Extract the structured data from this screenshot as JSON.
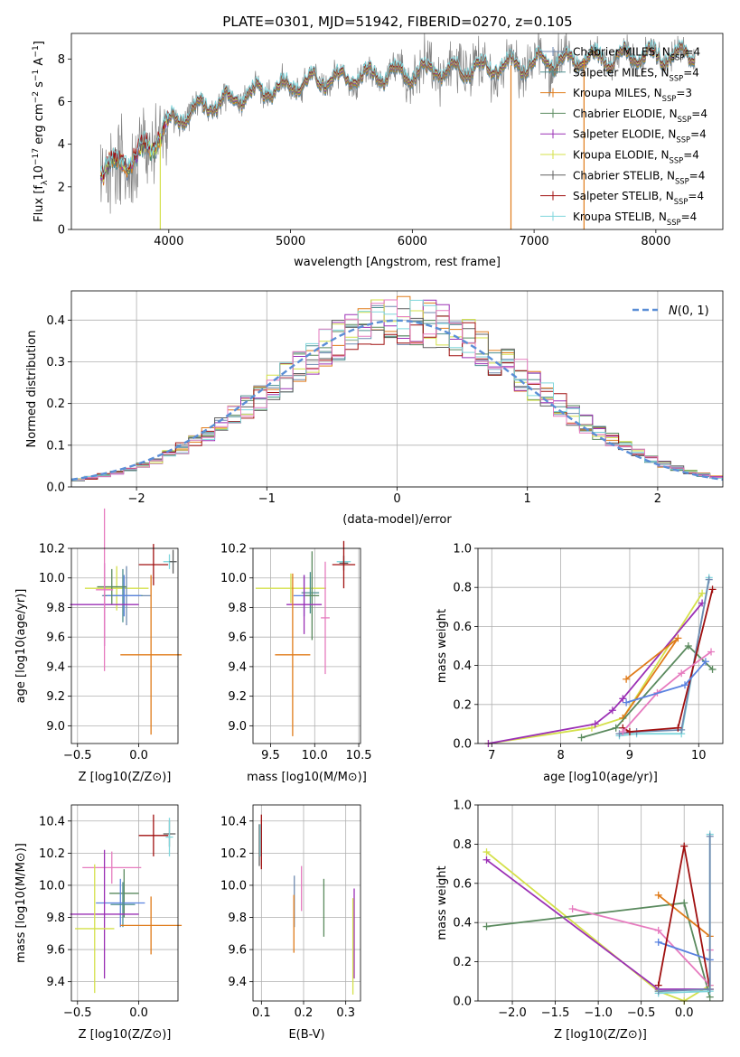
{
  "page": {
    "title": "PLATE=0301, MJD=51942, FIBERID=0270, z=0.105"
  },
  "colors": {
    "chabrier_miles": "#6f8ab0",
    "salpeter_miles": "#4d8f8f",
    "kroupa_miles": "#e07b1a",
    "chabrier_elodie": "#5a8a5e",
    "salpeter_elodie": "#9b30b5",
    "kroupa_elodie": "#d4e04a",
    "chabrier_stelib": "#606060",
    "salpeter_stelib": "#a01010",
    "kroupa_stelib": "#7fd6dc",
    "normal": "#5a8ed6",
    "pink": "#e67bbf",
    "blue": "#5a82e0"
  },
  "chart_data": [
    {
      "id": "spectrum",
      "type": "line",
      "xlabel": "wavelength [Angstrom, rest frame]",
      "ylabel": "Flux [f_λ10^-17 erg cm^-2 s^-1 A^-1]",
      "xlim": [
        3200,
        8550
      ],
      "ylim": [
        0,
        9.2
      ],
      "xticks": [
        4000,
        5000,
        6000,
        7000,
        8000
      ],
      "yticks": [
        0,
        2,
        4,
        6,
        8
      ],
      "legend_position": "top-right",
      "legend": [
        {
          "label": "Chabrier MILES, N_SSP=4",
          "color": "#6f8ab0"
        },
        {
          "label": "Salpeter MILES, N_SSP=4",
          "color": "#4d8f8f"
        },
        {
          "label": "Kroupa MILES, N_SSP=3",
          "color": "#e07b1a"
        },
        {
          "label": "Chabrier ELODIE, N_SSP=4",
          "color": "#5a8a5e"
        },
        {
          "label": "Salpeter ELODIE, N_SSP=4",
          "color": "#9b30b5"
        },
        {
          "label": "Kroupa ELODIE, N_SSP=4",
          "color": "#d4e04a"
        },
        {
          "label": "Chabrier STELIB, N_SSP=4",
          "color": "#606060"
        },
        {
          "label": "Salpeter STELIB, N_SSP=4",
          "color": "#a01010"
        },
        {
          "label": "Kroupa STELIB, N_SSP=4",
          "color": "#7fd6dc"
        }
      ],
      "continuum": {
        "x": [
          3450,
          3700,
          3850,
          4000,
          4200,
          4500,
          4800,
          5000,
          5300,
          5600,
          6000,
          6300,
          6600,
          7000,
          7400,
          7800,
          8300
        ],
        "y": [
          2.8,
          3.3,
          3.9,
          5.0,
          5.6,
          6.1,
          6.5,
          6.8,
          7.0,
          7.2,
          7.3,
          7.5,
          7.6,
          7.8,
          8.0,
          8.1,
          8.2
        ]
      }
    },
    {
      "id": "residuals",
      "type": "step",
      "xlabel": "(data-model)/error",
      "ylabel": "Normed distribution",
      "xlim": [
        -2.5,
        2.5
      ],
      "ylim": [
        0,
        0.47
      ],
      "xticks": [
        -2,
        -1,
        0,
        1,
        2
      ],
      "yticks": [
        0.0,
        0.1,
        0.2,
        0.3,
        0.4
      ],
      "legend_position": "top-right",
      "legend": [
        {
          "label": "N(0,1)",
          "color": "#5a8ed6",
          "style": "dashed"
        }
      ],
      "bin_width": 0.1
    },
    {
      "id": "age_vs_Z",
      "type": "errorbar",
      "xlabel": "Z [log10(Z/Z⊙)]",
      "ylabel": "age [log10(age/yr)]",
      "xlim": [
        -0.55,
        0.32
      ],
      "ylim": [
        8.88,
        10.2
      ],
      "xticks": [
        -0.5,
        0.0
      ],
      "xticklabels": [
        "−0.5",
        "0.0"
      ],
      "yticks": [
        9.0,
        9.2,
        9.4,
        9.6,
        9.8,
        10.0,
        10.2
      ],
      "points": [
        {
          "x": 0.25,
          "y": 10.11,
          "xerr": 0.05,
          "yerr": 0.05,
          "color": "#7fd6dc"
        },
        {
          "x": 0.28,
          "y": 10.11,
          "xerr": 0.03,
          "yerr": 0.08,
          "color": "#606060"
        },
        {
          "x": 0.12,
          "y": 10.09,
          "xerr": 0.12,
          "yerr": 0.14,
          "color": "#a01010"
        },
        {
          "x": -0.18,
          "y": 9.93,
          "xerr": 0.26,
          "yerr": 0.15,
          "color": "#d4e04a"
        },
        {
          "x": -0.1,
          "y": 9.88,
          "xerr": 0.2,
          "yerr": 0.2,
          "color": "#6f8ab0"
        },
        {
          "x": -0.13,
          "y": 9.88,
          "xerr": 0.16,
          "yerr": 0.18,
          "color": "#4d8f8f"
        },
        {
          "x": -0.12,
          "y": 9.88,
          "xerr": 0.14,
          "yerr": 0.14,
          "color": "#5a82e0"
        },
        {
          "x": -0.22,
          "y": 9.94,
          "xerr": 0.12,
          "yerr": 0.12,
          "color": "#5a8a5e"
        },
        {
          "x": -0.28,
          "y": 9.82,
          "xerr": 0.28,
          "yerr": 0.28,
          "color": "#9b30b5"
        },
        {
          "x": -0.28,
          "y": 9.92,
          "xerr": 0.07,
          "yerr": 0.55,
          "color": "#e67bbf"
        },
        {
          "x": 0.1,
          "y": 9.48,
          "xerr": 0.25,
          "yerr": 0.54,
          "color": "#e07b1a"
        }
      ]
    },
    {
      "id": "age_vs_mass",
      "type": "errorbar",
      "xlabel": "mass [log10(M/M⊙)]",
      "ylabel": "",
      "xlim": [
        9.3,
        10.52
      ],
      "ylim": [
        8.88,
        10.2
      ],
      "xticks": [
        9.5,
        10.0,
        10.5
      ],
      "yticks": [
        9.0,
        9.2,
        9.4,
        9.6,
        9.8,
        10.0,
        10.2
      ],
      "points": [
        {
          "x": 10.33,
          "y": 10.11,
          "xerr": 0.08,
          "yerr": 0.04,
          "color": "#7fd6dc"
        },
        {
          "x": 10.33,
          "y": 10.1,
          "xerr": 0.05,
          "yerr": 0.05,
          "color": "#606060"
        },
        {
          "x": 10.33,
          "y": 10.09,
          "xerr": 0.13,
          "yerr": 0.16,
          "color": "#a01010"
        },
        {
          "x": 9.73,
          "y": 9.93,
          "xerr": 0.4,
          "yerr": 0.1,
          "color": "#d4e04a"
        },
        {
          "x": 9.88,
          "y": 9.88,
          "xerr": 0.12,
          "yerr": 0.14,
          "color": "#5a82e0"
        },
        {
          "x": 9.95,
          "y": 9.9,
          "xerr": 0.1,
          "yerr": 0.14,
          "color": "#4d8f8f"
        },
        {
          "x": 9.97,
          "y": 9.88,
          "xerr": 0.08,
          "yerr": 0.3,
          "color": "#5a8a5e"
        },
        {
          "x": 9.88,
          "y": 9.82,
          "xerr": 0.2,
          "yerr": 0.2,
          "color": "#9b30b5"
        },
        {
          "x": 10.12,
          "y": 9.73,
          "xerr": 0.05,
          "yerr": 0.38,
          "color": "#e67bbf"
        },
        {
          "x": 9.75,
          "y": 9.48,
          "xerr": 0.2,
          "yerr": 0.55,
          "color": "#e07b1a"
        }
      ]
    },
    {
      "id": "weight_vs_age",
      "type": "line",
      "xlabel": "age [log10(age/yr)]",
      "ylabel": "mass weight",
      "xlim": [
        6.8,
        10.35
      ],
      "ylim": [
        0,
        1.0
      ],
      "xticks": [
        7,
        8,
        9,
        10
      ],
      "yticks": [
        0.0,
        0.2,
        0.4,
        0.6,
        0.8,
        1.0
      ],
      "series": [
        {
          "color": "#d4e04a",
          "x": [
            6.95,
            8.45,
            8.9,
            10.05
          ],
          "y": [
            0.0,
            0.08,
            0.13,
            0.77
          ]
        },
        {
          "color": "#9b30b5",
          "x": [
            6.95,
            8.5,
            8.75,
            8.9,
            10.05
          ],
          "y": [
            0.0,
            0.1,
            0.17,
            0.23,
            0.72
          ]
        },
        {
          "color": "#e07b1a",
          "x": [
            8.95,
            9.7,
            8.9
          ],
          "y": [
            0.33,
            0.54,
            0.13
          ]
        },
        {
          "color": "#5a8a5e",
          "x": [
            8.3,
            8.8,
            9.85,
            10.2
          ],
          "y": [
            0.03,
            0.08,
            0.5,
            0.38
          ]
        },
        {
          "color": "#7fd6dc",
          "x": [
            8.85,
            9.1,
            9.75,
            10.15
          ],
          "y": [
            0.04,
            0.05,
            0.05,
            0.85
          ]
        },
        {
          "color": "#6f8ab0",
          "x": [
            8.85,
            9.1,
            9.75,
            10.15
          ],
          "y": [
            0.05,
            0.06,
            0.07,
            0.84
          ]
        },
        {
          "color": "#a01010",
          "x": [
            8.9,
            9.0,
            9.7,
            10.2
          ],
          "y": [
            0.08,
            0.06,
            0.08,
            0.79
          ]
        },
        {
          "color": "#e67bbf",
          "x": [
            8.9,
            9.4,
            9.75,
            10.18
          ],
          "y": [
            0.06,
            0.26,
            0.36,
            0.47
          ]
        },
        {
          "color": "#5a82e0",
          "x": [
            8.95,
            9.8,
            10.1
          ],
          "y": [
            0.21,
            0.3,
            0.42
          ]
        }
      ]
    },
    {
      "id": "mass_vs_Z",
      "type": "errorbar",
      "xlabel": "Z [log10(Z/Z⊙)]",
      "ylabel": "mass [log10(M/M⊙)]",
      "xlim": [
        -0.55,
        0.32
      ],
      "ylim": [
        9.28,
        10.5
      ],
      "xticks": [
        -0.5,
        0.0
      ],
      "xticklabels": [
        "−0.5",
        "0.0"
      ],
      "yticks": [
        9.4,
        9.6,
        9.8,
        10.0,
        10.2,
        10.4
      ],
      "points": [
        {
          "x": 0.25,
          "y": 10.32,
          "xerr": 0.05,
          "yerr": 0.08,
          "color": "#606060"
        },
        {
          "x": 0.12,
          "y": 10.31,
          "xerr": 0.12,
          "yerr": 0.13,
          "color": "#a01010"
        },
        {
          "x": 0.25,
          "y": 10.3,
          "xerr": 0.03,
          "yerr": 0.12,
          "color": "#7fd6dc"
        },
        {
          "x": -0.22,
          "y": 10.11,
          "xerr": 0.24,
          "yerr": 0.1,
          "color": "#e67bbf"
        },
        {
          "x": -0.12,
          "y": 9.95,
          "xerr": 0.12,
          "yerr": 0.15,
          "color": "#5a8a5e"
        },
        {
          "x": -0.15,
          "y": 9.89,
          "xerr": 0.2,
          "yerr": 0.15,
          "color": "#5a82e0"
        },
        {
          "x": -0.13,
          "y": 9.88,
          "xerr": 0.1,
          "yerr": 0.14,
          "color": "#4d8f8f"
        },
        {
          "x": -0.28,
          "y": 9.82,
          "xerr": 0.28,
          "yerr": 0.4,
          "color": "#9b30b5"
        },
        {
          "x": -0.36,
          "y": 9.73,
          "xerr": 0.16,
          "yerr": 0.4,
          "color": "#d4e04a"
        },
        {
          "x": 0.1,
          "y": 9.75,
          "xerr": 0.25,
          "yerr": 0.18,
          "color": "#e07b1a"
        }
      ]
    },
    {
      "id": "mass_vs_ebv",
      "type": "errorbar",
      "xlabel": "E(B-V)",
      "ylabel": "",
      "xlim": [
        0.08,
        0.335
      ],
      "ylim": [
        9.28,
        10.5
      ],
      "xticks": [
        0.1,
        0.2,
        0.3
      ],
      "yticks": [
        9.4,
        9.6,
        9.8,
        10.0,
        10.2,
        10.4
      ],
      "points": [
        {
          "x": 0.1,
          "y": 10.27,
          "yerr": 0.17,
          "color": "#a01010"
        },
        {
          "x": 0.095,
          "y": 10.25,
          "yerr": 0.13,
          "color": "#606060"
        },
        {
          "x": 0.097,
          "y": 10.28,
          "yerr": 0.1,
          "color": "#7fd6dc"
        },
        {
          "x": 0.178,
          "y": 9.9,
          "yerr": 0.16,
          "color": "#6f8ab0"
        },
        {
          "x": 0.177,
          "y": 9.76,
          "yerr": 0.18,
          "color": "#e07b1a"
        },
        {
          "x": 0.195,
          "y": 9.98,
          "yerr": 0.14,
          "color": "#e67bbf"
        },
        {
          "x": 0.248,
          "y": 9.86,
          "yerr": 0.18,
          "color": "#5a8a5e"
        },
        {
          "x": 0.32,
          "y": 9.7,
          "yerr": 0.28,
          "color": "#9b30b5"
        },
        {
          "x": 0.317,
          "y": 9.62,
          "yerr": 0.3,
          "color": "#d4e04a"
        }
      ]
    },
    {
      "id": "weight_vs_Z",
      "type": "line",
      "xlabel": "Z [log10(Z/Z⊙)]",
      "ylabel": "mass weight",
      "xlim": [
        -2.4,
        0.45
      ],
      "ylim": [
        0,
        1.0
      ],
      "xticks": [
        -2.0,
        -1.5,
        -1.0,
        -0.5,
        0.0
      ],
      "xticklabels": [
        "−2.0",
        "−1.5",
        "−1.0",
        "−0.5",
        "0.0"
      ],
      "yticks": [
        0.0,
        0.2,
        0.4,
        0.6,
        0.8,
        1.0
      ],
      "series": [
        {
          "color": "#d4e04a",
          "x": [
            -2.3,
            -0.3,
            0.0,
            0.3
          ],
          "y": [
            0.76,
            0.05,
            0.0,
            0.08
          ]
        },
        {
          "color": "#9b30b5",
          "x": [
            -2.3,
            -0.3,
            0.3
          ],
          "y": [
            0.72,
            0.06,
            0.06
          ]
        },
        {
          "color": "#5a8a5e",
          "x": [
            -2.3,
            0.0,
            0.3
          ],
          "y": [
            0.38,
            0.5,
            0.02
          ]
        },
        {
          "color": "#e67bbf",
          "x": [
            -1.3,
            -0.3,
            0.3,
            0.3
          ],
          "y": [
            0.47,
            0.36,
            0.08,
            0.26
          ]
        },
        {
          "color": "#e07b1a",
          "x": [
            -0.3,
            0.3
          ],
          "y": [
            0.54,
            0.33
          ]
        },
        {
          "color": "#5a82e0",
          "x": [
            -0.3,
            0.3
          ],
          "y": [
            0.3,
            0.21
          ]
        },
        {
          "color": "#a01010",
          "x": [
            -0.3,
            0.0,
            0.3
          ],
          "y": [
            0.08,
            0.79,
            0.06
          ]
        },
        {
          "color": "#7fd6dc",
          "x": [
            -0.3,
            0.3,
            0.3
          ],
          "y": [
            0.04,
            0.05,
            0.85
          ]
        },
        {
          "color": "#6f8ab0",
          "x": [
            -0.3,
            0.3,
            0.3
          ],
          "y": [
            0.05,
            0.06,
            0.84
          ]
        }
      ]
    }
  ]
}
